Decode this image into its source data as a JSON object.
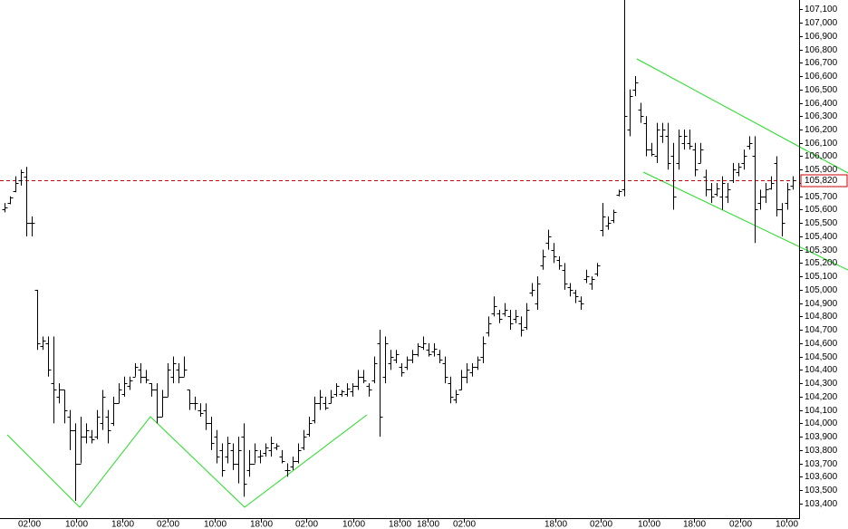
{
  "chart_data": {
    "type": "ohlc",
    "color": "#000000",
    "bars": [
      [
        105600,
        105650,
        105580,
        105620
      ],
      [
        105650,
        105700,
        105640,
        105690
      ],
      [
        105740,
        105850,
        105730,
        105800
      ],
      [
        105820,
        105900,
        105780,
        105880
      ],
      [
        105850,
        105920,
        105400,
        105500
      ],
      [
        105500,
        105550,
        105400,
        105500
      ],
      [
        105000,
        105000,
        104550,
        104600
      ],
      [
        104580,
        104650,
        104550,
        104620
      ],
      [
        104600,
        104650,
        104350,
        104400
      ],
      [
        104300,
        104650,
        104000,
        104250
      ],
      [
        104200,
        104300,
        104150,
        104250
      ],
      [
        104250,
        104250,
        104000,
        104100
      ],
      [
        104050,
        104100,
        103800,
        103950
      ],
      [
        103950,
        104000,
        103420,
        103700
      ],
      [
        103700,
        104050,
        103700,
        103900
      ],
      [
        103900,
        104000,
        103850,
        103950
      ],
      [
        103900,
        103950,
        103850,
        103880
      ],
      [
        103900,
        104100,
        103880,
        104050
      ],
      [
        104000,
        104250,
        103950,
        104200
      ],
      [
        104050,
        104100,
        103850,
        103950
      ],
      [
        104000,
        104200,
        103980,
        104150
      ],
      [
        104150,
        104300,
        104150,
        104250
      ],
      [
        104220,
        104350,
        104200,
        104300
      ],
      [
        104280,
        104350,
        104250,
        104320
      ],
      [
        104350,
        104450,
        104350,
        104420
      ],
      [
        104400,
        104450,
        104300,
        104350
      ],
      [
        104350,
        104400,
        104300,
        104330
      ],
      [
        104300,
        104300,
        104200,
        104250
      ],
      [
        104250,
        104300,
        104000,
        104050
      ],
      [
        104050,
        104250,
        104050,
        104200
      ],
      [
        104200,
        104450,
        104200,
        104400
      ],
      [
        104350,
        104500,
        104300,
        104450
      ],
      [
        104400,
        104450,
        104300,
        104350
      ],
      [
        104350,
        104500,
        104350,
        104400
      ],
      [
        104250,
        104250,
        104100,
        104150
      ],
      [
        104150,
        104200,
        104100,
        104150
      ],
      [
        104100,
        104150,
        104050,
        104080
      ],
      [
        104100,
        104150,
        103950,
        104000
      ],
      [
        104000,
        104050,
        103800,
        103850
      ],
      [
        103900,
        103950,
        103700,
        103750
      ],
      [
        103800,
        103850,
        103600,
        103650
      ],
      [
        103750,
        103900,
        103700,
        103850
      ],
      [
        103800,
        103850,
        103650,
        103700
      ],
      [
        103700,
        103900,
        103550,
        103800
      ],
      [
        103900,
        104000,
        103450,
        103550
      ],
      [
        103650,
        103800,
        103600,
        103700
      ],
      [
        103700,
        103850,
        103700,
        103800
      ],
      [
        103750,
        103800,
        103700,
        103760
      ],
      [
        103780,
        103850,
        103750,
        103820
      ],
      [
        103800,
        103900,
        103750,
        103850
      ],
      [
        103820,
        103850,
        103800,
        103830
      ],
      [
        103750,
        103800,
        103700,
        103720
      ],
      [
        103650,
        103700,
        103600,
        103650
      ],
      [
        103680,
        103750,
        103650,
        103720
      ],
      [
        103720,
        103850,
        103700,
        103800
      ],
      [
        103820,
        103950,
        103800,
        103900
      ],
      [
        103920,
        104050,
        103900,
        104000
      ],
      [
        104020,
        104200,
        104000,
        104150
      ],
      [
        104150,
        104250,
        104100,
        104200
      ],
      [
        104150,
        104200,
        104100,
        104120
      ],
      [
        104150,
        104250,
        104150,
        104200
      ],
      [
        104220,
        104300,
        104200,
        104280
      ],
      [
        104220,
        104250,
        104200,
        104240
      ],
      [
        104220,
        104300,
        104200,
        104260
      ],
      [
        104240,
        104300,
        104200,
        104280
      ],
      [
        104280,
        104400,
        104250,
        104350
      ],
      [
        104350,
        104400,
        104300,
        104320
      ],
      [
        104280,
        104300,
        104200,
        104250
      ],
      [
        104320,
        104500,
        104300,
        104450
      ],
      [
        104600,
        104700,
        103900,
        104050
      ],
      [
        104350,
        104650,
        104300,
        104600
      ],
      [
        104450,
        104550,
        104400,
        104500
      ],
      [
        104480,
        104550,
        104450,
        104520
      ],
      [
        104420,
        104450,
        104350,
        104380
      ],
      [
        104420,
        104500,
        104400,
        104480
      ],
      [
        104480,
        104550,
        104450,
        104520
      ],
      [
        104520,
        104600,
        104500,
        104580
      ],
      [
        104570,
        104650,
        104550,
        104600
      ],
      [
        104550,
        104600,
        104500,
        104520
      ],
      [
        104540,
        104600,
        104500,
        104560
      ],
      [
        104520,
        104550,
        104450,
        104480
      ],
      [
        104450,
        104500,
        104300,
        104350
      ],
      [
        104300,
        104350,
        104150,
        104200
      ],
      [
        104180,
        104250,
        104150,
        104220
      ],
      [
        104250,
        104400,
        104250,
        104350
      ],
      [
        104350,
        104450,
        104300,
        104400
      ],
      [
        104380,
        104450,
        104350,
        104420
      ],
      [
        104420,
        104500,
        104400,
        104480
      ],
      [
        104500,
        104650,
        104450,
        104600
      ],
      [
        104680,
        104800,
        104650,
        104750
      ],
      [
        104820,
        104950,
        104800,
        104880
      ],
      [
        104820,
        104850,
        104750,
        104780
      ],
      [
        104820,
        104900,
        104800,
        104850
      ],
      [
        104800,
        104850,
        104700,
        104750
      ],
      [
        104780,
        104850,
        104750,
        104800
      ],
      [
        104750,
        104800,
        104650,
        104700
      ],
      [
        104720,
        104900,
        104700,
        104850
      ],
      [
        104980,
        105050,
        104950,
        105000
      ],
      [
        104900,
        105100,
        104850,
        105050
      ],
      [
        105180,
        105300,
        105150,
        105250
      ],
      [
        105350,
        105450,
        105300,
        105400
      ],
      [
        105300,
        105350,
        105200,
        105250
      ],
      [
        105220,
        105250,
        105150,
        105180
      ],
      [
        105150,
        105200,
        105000,
        105050
      ],
      [
        105020,
        105050,
        104950,
        105000
      ],
      [
        104980,
        105000,
        104900,
        104950
      ],
      [
        104920,
        104950,
        104850,
        104900
      ],
      [
        105080,
        105150,
        105050,
        105100
      ],
      [
        105050,
        105100,
        105000,
        105080
      ],
      [
        105120,
        105200,
        105100,
        105180
      ],
      [
        105450,
        105650,
        105400,
        105550
      ],
      [
        105480,
        105550,
        105450,
        105500
      ],
      [
        105520,
        105600,
        105500,
        105580
      ],
      [
        105710,
        105750,
        105700,
        105740
      ],
      [
        105750,
        107200,
        105700,
        106300
      ],
      [
        106200,
        106500,
        106150,
        106450
      ],
      [
        106500,
        106600,
        106450,
        106550
      ],
      [
        106350,
        106400,
        106250,
        106300
      ],
      [
        106250,
        106300,
        106000,
        106050
      ],
      [
        106050,
        106100,
        106000,
        106020
      ],
      [
        106000,
        106250,
        105950,
        106200
      ],
      [
        106150,
        106250,
        106100,
        106200
      ],
      [
        106150,
        106250,
        105900,
        105950
      ],
      [
        106000,
        106100,
        105600,
        105700
      ],
      [
        105950,
        106200,
        105900,
        106150
      ],
      [
        106100,
        106200,
        106050,
        106150
      ],
      [
        106100,
        106200,
        106050,
        106080
      ],
      [
        106050,
        106100,
        105850,
        105900
      ],
      [
        105950,
        106100,
        105950,
        106050
      ],
      [
        105850,
        105900,
        105700,
        105750
      ],
      [
        105750,
        105800,
        105650,
        105700
      ],
      [
        105720,
        105800,
        105700,
        105760
      ],
      [
        105700,
        105850,
        105600,
        105800
      ],
      [
        105700,
        105800,
        105650,
        105750
      ],
      [
        105820,
        105950,
        105800,
        105900
      ],
      [
        105880,
        105950,
        105850,
        105920
      ],
      [
        105950,
        106050,
        105900,
        106000
      ],
      [
        106080,
        106150,
        106050,
        106100
      ],
      [
        106000,
        106150,
        105350,
        105600
      ],
      [
        105650,
        105750,
        105600,
        105700
      ],
      [
        105700,
        105800,
        105650,
        105750
      ],
      [
        105760,
        105850,
        105750,
        105800
      ],
      [
        105950,
        106000,
        105550,
        105600
      ],
      [
        105600,
        105650,
        105400,
        105500
      ],
      [
        105650,
        105800,
        105600,
        105750
      ],
      [
        105780,
        105850,
        105750,
        105820
      ]
    ],
    "xlim": [
      -0.83,
      146.17
    ],
    "xticks": [
      {
        "value": 4.5,
        "label": "02:00"
      },
      {
        "value": 13.2,
        "label": "10:00"
      },
      {
        "value": 21.7,
        "label": "18:00"
      },
      {
        "value": 30,
        "label": "02:00"
      },
      {
        "value": 38.7,
        "label": "10:00"
      },
      {
        "value": 47.2,
        "label": "18:00"
      },
      {
        "value": 55.5,
        "label": "02:00"
      },
      {
        "value": 64.2,
        "label": "10:00"
      },
      {
        "value": 72.7,
        "label": "18:00"
      },
      {
        "value": 77.8,
        "label": "18:00"
      },
      {
        "value": 84.5,
        "label": "02:00"
      },
      {
        "value": 101.3,
        "label": "18:00"
      },
      {
        "value": 109.7,
        "label": "02:00"
      },
      {
        "value": 118.5,
        "label": "10:00"
      },
      {
        "value": 126.8,
        "label": "18:00"
      },
      {
        "value": 135.3,
        "label": "02:00"
      },
      {
        "value": 143.8,
        "label": "10:00"
      }
    ],
    "ylim": [
      103290,
      107170
    ],
    "yticks": [
      {
        "value": 103400,
        "label": "103,400"
      },
      {
        "value": 103500,
        "label": "103,500"
      },
      {
        "value": 103600,
        "label": "103,600"
      },
      {
        "value": 103700,
        "label": "103,700"
      },
      {
        "value": 103800,
        "label": "103,800"
      },
      {
        "value": 103900,
        "label": "103,900"
      },
      {
        "value": 104000,
        "label": "104,000"
      },
      {
        "value": 104100,
        "label": "104,100"
      },
      {
        "value": 104200,
        "label": "104,200"
      },
      {
        "value": 104300,
        "label": "104,300"
      },
      {
        "value": 104400,
        "label": "104,400"
      },
      {
        "value": 104500,
        "label": "104,500"
      },
      {
        "value": 104600,
        "label": "104,600"
      },
      {
        "value": 104700,
        "label": "104,700"
      },
      {
        "value": 104800,
        "label": "104,800"
      },
      {
        "value": 104900,
        "label": "104,900"
      },
      {
        "value": 105000,
        "label": "105,000"
      },
      {
        "value": 105100,
        "label": "105,100"
      },
      {
        "value": 105200,
        "label": "105,200"
      },
      {
        "value": 105300,
        "label": "105,300"
      },
      {
        "value": 105400,
        "label": "105,400"
      },
      {
        "value": 105500,
        "label": "105,500"
      },
      {
        "value": 105600,
        "label": "105,600"
      },
      {
        "value": 105700,
        "label": "105,700"
      },
      {
        "value": 105800,
        "label": "105,800"
      },
      {
        "value": 105900,
        "label": "105,900"
      },
      {
        "value": 106000,
        "label": "106,000"
      },
      {
        "value": 106100,
        "label": "106,100"
      },
      {
        "value": 106200,
        "label": "106,200"
      },
      {
        "value": 106300,
        "label": "106,300"
      },
      {
        "value": 106400,
        "label": "106,400"
      },
      {
        "value": 106500,
        "label": "106,500"
      },
      {
        "value": 106600,
        "label": "106,600"
      },
      {
        "value": 106700,
        "label": "106,700"
      },
      {
        "value": 106800,
        "label": "106,800"
      },
      {
        "value": 106900,
        "label": "106,900"
      },
      {
        "value": 107000,
        "label": "107,000"
      },
      {
        "value": 107100,
        "label": "107,100"
      }
    ],
    "reference_line": {
      "value": 105820,
      "label": "105,820",
      "color": "#cc0000"
    }
  }
}
